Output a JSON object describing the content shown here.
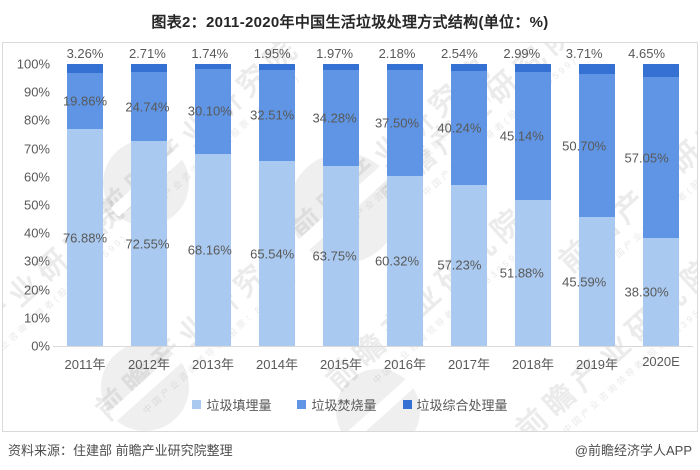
{
  "title": "图表2：2011-2020年中国生活垃圾处理方式结构(单位：%)",
  "chart_data": {
    "type": "bar",
    "stacked": true,
    "value_unit": "%",
    "title": "图表2：2011-2020年中国生活垃圾处理方式结构(单位：%)",
    "categories": [
      "2011年",
      "2012年",
      "2013年",
      "2014年",
      "2015年",
      "2016年",
      "2017年",
      "2018年",
      "2019年",
      "2020E"
    ],
    "series": [
      {
        "key": "landfill",
        "name": "垃圾填埋量",
        "color": "#A9C9F0",
        "values": [
          76.88,
          72.55,
          68.16,
          65.54,
          63.75,
          60.32,
          57.23,
          51.88,
          45.59,
          38.3
        ]
      },
      {
        "key": "incineration",
        "name": "垃圾焚烧量",
        "color": "#5F95E4",
        "values": [
          19.86,
          24.74,
          30.1,
          32.51,
          34.28,
          37.5,
          40.24,
          45.14,
          50.7,
          57.05
        ]
      },
      {
        "key": "comprehensive",
        "name": "垃圾综合处理量",
        "color": "#3471D3",
        "values": [
          3.26,
          2.71,
          1.74,
          1.95,
          1.97,
          2.18,
          2.54,
          2.99,
          3.71,
          4.65
        ]
      }
    ],
    "ylim": [
      0,
      100
    ],
    "ytick_step": 10,
    "ytick_suffix": "%",
    "label_decimals": 2,
    "grid": false,
    "legend_position": "bottom"
  },
  "watermark": {
    "brand": "前瞻产业研究院",
    "tagline": "中国产业咨询领导者(股票：839599)"
  },
  "footer": {
    "source": "资料来源：住建部 前瞻产业研究院整理",
    "credit": "@前瞻经济学人APP"
  }
}
